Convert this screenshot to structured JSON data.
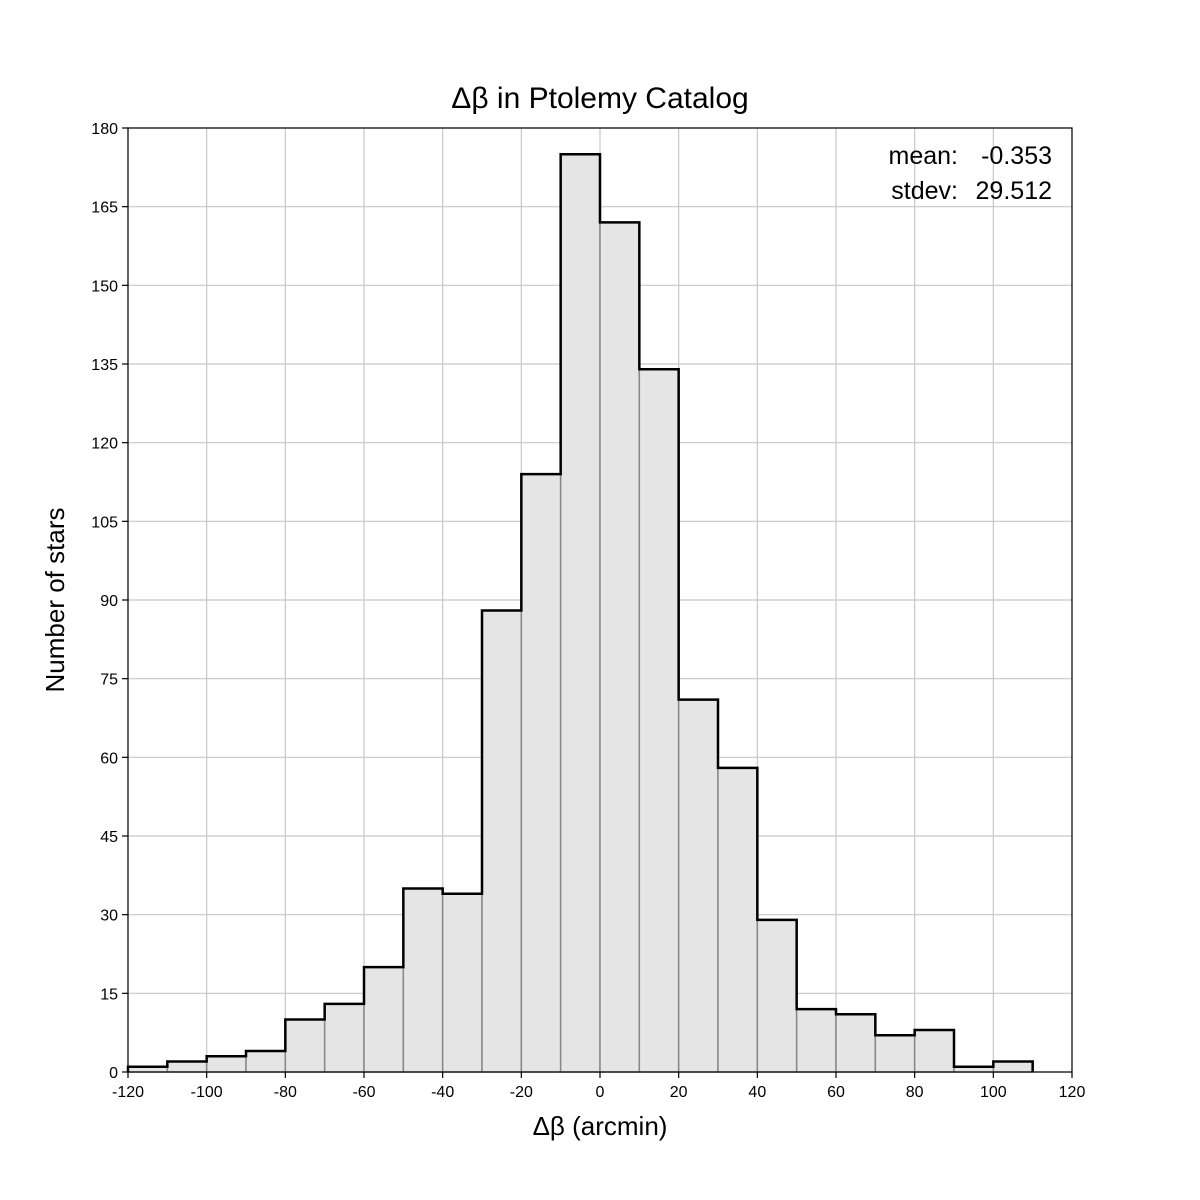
{
  "chart_data": {
    "type": "bar",
    "title": "Δβ in Ptolemy Catalog",
    "xlabel": "Δβ (arcmin)",
    "ylabel": "Number of stars",
    "xlim": [
      -120,
      120
    ],
    "ylim": [
      0,
      180
    ],
    "bin_width": 10,
    "bin_starts": [
      -120,
      -110,
      -100,
      -90,
      -80,
      -70,
      -60,
      -50,
      -40,
      -30,
      -20,
      -10,
      0,
      10,
      20,
      30,
      40,
      50,
      60,
      70,
      80,
      90,
      100
    ],
    "values": [
      1,
      2,
      3,
      4,
      10,
      13,
      20,
      35,
      34,
      88,
      114,
      175,
      162,
      134,
      71,
      58,
      29,
      12,
      11,
      7,
      8,
      1,
      2
    ],
    "xticks": [
      "-120",
      "-100",
      "-80",
      "-60",
      "-40",
      "-20",
      "0",
      "20",
      "40",
      "60",
      "80",
      "100",
      "120"
    ],
    "yticks": [
      "0",
      "15",
      "30",
      "45",
      "60",
      "75",
      "90",
      "105",
      "120",
      "135",
      "150",
      "165",
      "180"
    ],
    "annotations": {
      "mean_label": "mean:",
      "mean_value": "-0.353",
      "stdev_label": "stdev:",
      "stdev_value": "29.512"
    },
    "grid": true,
    "colors": {
      "bar_fill": "#e5e5e5",
      "bar_edge": "#888888",
      "outline": "#000000",
      "grid": "#c8c8c8"
    }
  }
}
